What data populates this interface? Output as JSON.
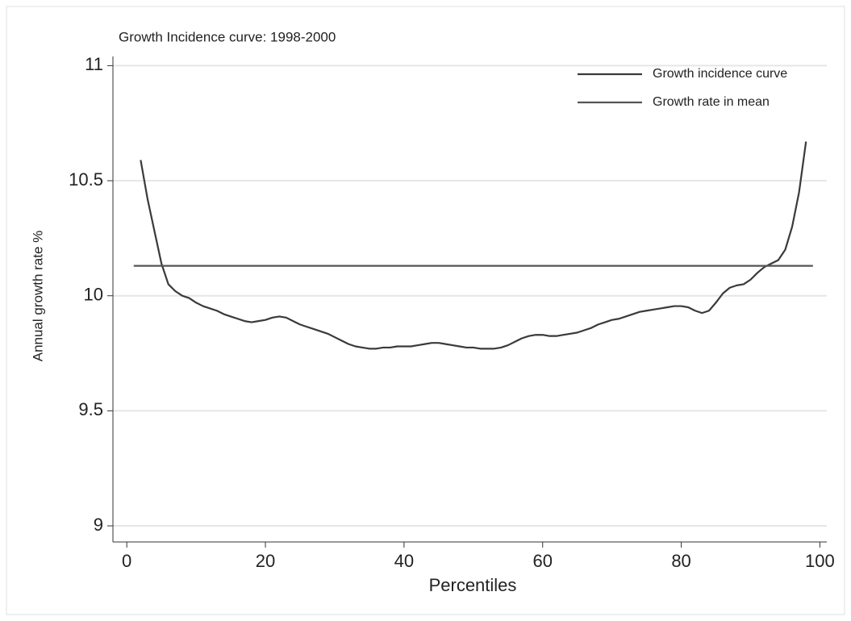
{
  "chart_data": {
    "type": "line",
    "title": "Growth Incidence curve: 1998-2000",
    "x_label": "Percentiles",
    "y_label": "Annual growth rate %",
    "xlim": [
      -2,
      101
    ],
    "ylim": [
      8.93,
      11.04
    ],
    "xticks": [
      0,
      20,
      40,
      60,
      80,
      100
    ],
    "yticks": [
      9,
      9.5,
      10,
      10.5,
      11
    ],
    "grid": true,
    "legend": "top-right",
    "series": [
      {
        "name": "Growth incidence curve",
        "color": "#3a3a3a",
        "x": [
          2,
          3,
          4,
          5,
          6,
          7,
          8,
          9,
          10,
          11,
          12,
          13,
          14,
          15,
          16,
          17,
          18,
          19,
          20,
          21,
          22,
          23,
          24,
          25,
          26,
          27,
          28,
          29,
          30,
          31,
          32,
          33,
          34,
          35,
          36,
          37,
          38,
          39,
          40,
          41,
          42,
          43,
          44,
          45,
          46,
          47,
          48,
          49,
          50,
          51,
          52,
          53,
          54,
          55,
          56,
          57,
          58,
          59,
          60,
          61,
          62,
          63,
          64,
          65,
          66,
          67,
          68,
          69,
          70,
          71,
          72,
          73,
          74,
          75,
          76,
          77,
          78,
          79,
          80,
          81,
          82,
          83,
          84,
          85,
          86,
          87,
          88,
          89,
          90,
          91,
          92,
          93,
          94,
          95,
          96,
          97,
          98
        ],
        "values": [
          10.59,
          10.42,
          10.28,
          10.14,
          10.05,
          10.02,
          10.0,
          9.99,
          9.97,
          9.955,
          9.945,
          9.935,
          9.92,
          9.91,
          9.9,
          9.89,
          9.885,
          9.89,
          9.895,
          9.905,
          9.91,
          9.905,
          9.89,
          9.875,
          9.865,
          9.855,
          9.845,
          9.835,
          9.82,
          9.805,
          9.79,
          9.78,
          9.775,
          9.77,
          9.77,
          9.775,
          9.775,
          9.78,
          9.78,
          9.78,
          9.785,
          9.79,
          9.795,
          9.795,
          9.79,
          9.785,
          9.78,
          9.775,
          9.775,
          9.77,
          9.77,
          9.77,
          9.775,
          9.785,
          9.8,
          9.815,
          9.825,
          9.83,
          9.83,
          9.825,
          9.825,
          9.83,
          9.835,
          9.84,
          9.85,
          9.86,
          9.875,
          9.885,
          9.895,
          9.9,
          9.91,
          9.92,
          9.93,
          9.935,
          9.94,
          9.945,
          9.95,
          9.955,
          9.955,
          9.95,
          9.935,
          9.925,
          9.935,
          9.97,
          10.01,
          10.035,
          10.045,
          10.05,
          10.07,
          10.1,
          10.125,
          10.14,
          10.155,
          10.2,
          10.3,
          10.45,
          10.67
        ]
      },
      {
        "name": "Growth rate in mean",
        "color": "#555555",
        "x": [
          1,
          99
        ],
        "values": [
          10.13,
          10.13
        ]
      }
    ]
  }
}
